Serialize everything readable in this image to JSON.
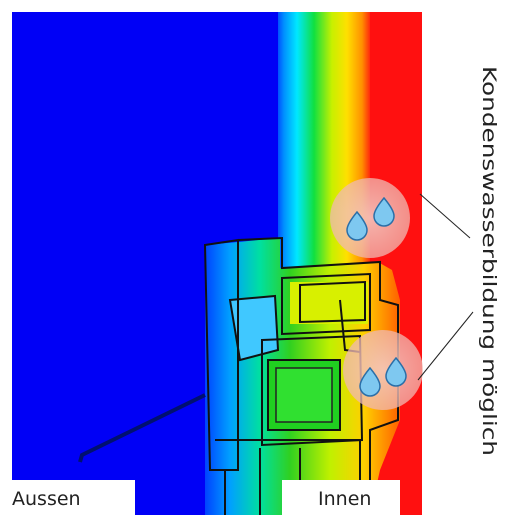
{
  "labels": {
    "outside": "Aussen",
    "inside": "Innen",
    "condensation": "Kondenswasserbildung möglich"
  }
}
